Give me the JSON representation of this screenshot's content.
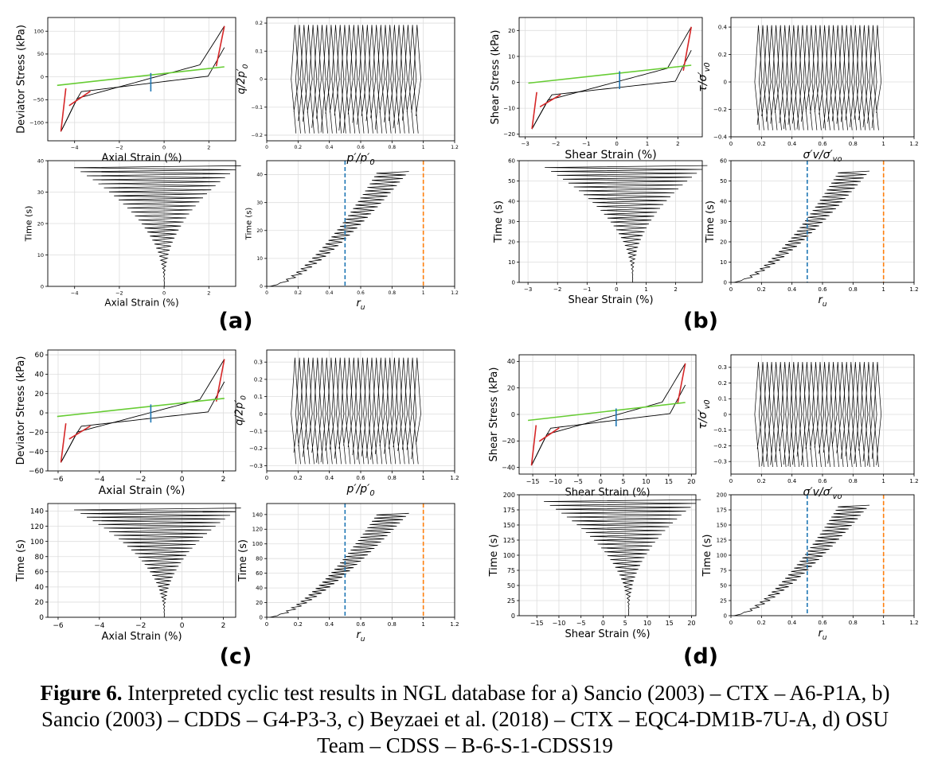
{
  "figure": {
    "caption_label": "Figure 6.",
    "caption_text": " Interpreted cyclic test results in NGL database for a) Sancio (2003) – CTX – A6-P1A, b) Sancio (2003) – CDDS – G4-P3-3, c) Beyzaei et al. (2018) – CTX – EQC4-DM1B-7U-A, d) OSU Team – CDSS – B-6-S-1-CDSS19"
  },
  "colors": {
    "trace": "#000000",
    "red": "#d62728",
    "green": "#66cc33",
    "blue": "#1f77b4",
    "orange": "#ff7f0e",
    "grid": "#dddddd"
  },
  "chart_data": [
    {
      "panel": "a",
      "type": "line",
      "xlabel": "Axial Strain (%)",
      "ylabel": "Deviator Stress (kPa)",
      "xlim": [
        -5.2,
        3.2
      ],
      "ylim": [
        -140,
        130
      ],
      "xticks": [
        -4,
        -2,
        0,
        2
      ],
      "yticks": [
        -100,
        -50,
        0,
        50,
        100
      ],
      "grid": true
    },
    {
      "panel": "a",
      "type": "line",
      "xlabel": "p′/p′0",
      "ylabel": "q/2p′0",
      "xlim": [
        0,
        1.2
      ],
      "ylim": [
        -0.22,
        0.22
      ],
      "xticks": [
        0.0,
        0.2,
        0.4,
        0.6,
        0.8,
        1.0,
        1.2
      ],
      "yticks": [
        -0.2,
        -0.1,
        0.0,
        0.1,
        0.2
      ],
      "grid": true
    },
    {
      "panel": "a",
      "type": "line",
      "xlabel": "Axial Strain (%)",
      "ylabel": "Time (s)",
      "xlim": [
        -5.2,
        3.2
      ],
      "ylim": [
        0,
        40
      ],
      "xticks": [
        -4,
        -2,
        0,
        2
      ],
      "yticks": [
        0,
        10,
        20,
        30,
        40
      ],
      "grid": true
    },
    {
      "panel": "a",
      "type": "line",
      "xlabel": "ru",
      "ylabel": "Time (s)",
      "xlim": [
        0,
        1.2
      ],
      "ylim": [
        0,
        45
      ],
      "xticks": [
        0.0,
        0.2,
        0.4,
        0.6,
        0.8,
        1.0,
        1.2
      ],
      "yticks": [
        0,
        10,
        20,
        30,
        40
      ],
      "vlines": [
        0.5,
        1.0
      ],
      "grid": true
    },
    {
      "panel": "b",
      "type": "line",
      "xlabel": "Shear Strain (%)",
      "ylabel": "Shear Stress (kPa)",
      "xlim": [
        -3.2,
        2.8
      ],
      "ylim": [
        -21,
        25
      ],
      "xticks": [
        -3,
        -2,
        -1,
        0,
        1,
        2
      ],
      "yticks": [
        -20,
        -10,
        0,
        10,
        20
      ],
      "grid": true
    },
    {
      "panel": "b",
      "type": "line",
      "xlabel": "σ′v/σ′vo",
      "ylabel": "τ/σ′v0",
      "xlim": [
        0,
        1.2
      ],
      "ylim": [
        -0.4,
        0.47
      ],
      "xticks": [
        0.0,
        0.2,
        0.4,
        0.6,
        0.8,
        1.0,
        1.2
      ],
      "yticks": [
        -0.4,
        -0.2,
        0.0,
        0.2,
        0.4
      ],
      "grid": true
    },
    {
      "panel": "b",
      "type": "line",
      "xlabel": "Shear Strain (%)",
      "ylabel": "Time (s)",
      "xlim": [
        -3.3,
        2.9
      ],
      "ylim": [
        0,
        60
      ],
      "xticks": [
        -3,
        -2,
        -1,
        0,
        1,
        2
      ],
      "yticks": [
        0,
        10,
        20,
        30,
        40,
        50,
        60
      ],
      "grid": true
    },
    {
      "panel": "b",
      "type": "line",
      "xlabel": "ru",
      "ylabel": "Time (s)",
      "xlim": [
        0,
        1.2
      ],
      "ylim": [
        0,
        60
      ],
      "xticks": [
        0.0,
        0.2,
        0.4,
        0.6,
        0.8,
        1.0,
        1.2
      ],
      "yticks": [
        0,
        10,
        20,
        30,
        40,
        50,
        60
      ],
      "vlines": [
        0.5,
        1.0
      ],
      "grid": true
    },
    {
      "panel": "c",
      "type": "line",
      "xlabel": "Axial Strain (%)",
      "ylabel": "Deviator Stress (kPa)",
      "xlim": [
        -6.5,
        2.6
      ],
      "ylim": [
        -60,
        65
      ],
      "xticks": [
        -6,
        -4,
        -2,
        0,
        2
      ],
      "yticks": [
        -60,
        -40,
        -20,
        0,
        20,
        40,
        60
      ],
      "grid": true
    },
    {
      "panel": "c",
      "type": "line",
      "xlabel": "p′/p′0",
      "ylabel": "q/2p′0",
      "xlim": [
        0,
        1.2
      ],
      "ylim": [
        -0.33,
        0.37
      ],
      "xticks": [
        0.0,
        0.2,
        0.4,
        0.6,
        0.8,
        1.0,
        1.2
      ],
      "yticks": [
        -0.3,
        -0.2,
        -0.1,
        0.0,
        0.1,
        0.2,
        0.3
      ],
      "grid": true
    },
    {
      "panel": "c",
      "type": "line",
      "xlabel": "Axial Strain (%)",
      "ylabel": "Time (s)",
      "xlim": [
        -6.5,
        2.6
      ],
      "ylim": [
        0,
        150
      ],
      "xticks": [
        -6,
        -4,
        -2,
        0,
        2
      ],
      "yticks": [
        0,
        20,
        40,
        60,
        80,
        100,
        120,
        140
      ],
      "grid": true
    },
    {
      "panel": "c",
      "type": "line",
      "xlabel": "ru",
      "ylabel": "Time (s)",
      "xlim": [
        0,
        1.2
      ],
      "ylim": [
        0,
        155
      ],
      "xticks": [
        0.0,
        0.2,
        0.4,
        0.6,
        0.8,
        1.0,
        1.2
      ],
      "yticks": [
        0,
        20,
        40,
        60,
        80,
        100,
        120,
        140
      ],
      "vlines": [
        0.5,
        1.0
      ],
      "grid": true
    },
    {
      "panel": "d",
      "type": "line",
      "xlabel": "Shear Strain (%)",
      "ylabel": "Shear Stress (kPa)",
      "xlim": [
        -18,
        21
      ],
      "ylim": [
        -45,
        45
      ],
      "xticks": [
        -15,
        -10,
        -5,
        0,
        5,
        10,
        15,
        20
      ],
      "yticks": [
        -40,
        -20,
        0,
        20,
        40
      ],
      "grid": true
    },
    {
      "panel": "d",
      "type": "line",
      "xlabel": "σ′v/σ′vo",
      "ylabel": "τ/σ′v0",
      "xlim": [
        0,
        1.2
      ],
      "ylim": [
        -0.38,
        0.38
      ],
      "xticks": [
        0.0,
        0.2,
        0.4,
        0.6,
        0.8,
        1.0,
        1.2
      ],
      "yticks": [
        -0.3,
        -0.2,
        -0.1,
        0.0,
        0.1,
        0.2,
        0.3
      ],
      "grid": true
    },
    {
      "panel": "d",
      "type": "line",
      "xlabel": "Shear Strain (%)",
      "ylabel": "Time (s)",
      "xlim": [
        -19,
        21
      ],
      "ylim": [
        0,
        200
      ],
      "xticks": [
        -15,
        -10,
        -5,
        0,
        5,
        10,
        15,
        20
      ],
      "yticks": [
        0,
        25,
        50,
        75,
        100,
        125,
        150,
        175,
        200
      ],
      "grid": true
    },
    {
      "panel": "d",
      "type": "line",
      "xlabel": "ru",
      "ylabel": "Time (s)",
      "xlim": [
        0,
        1.2
      ],
      "ylim": [
        0,
        200
      ],
      "xticks": [
        0.0,
        0.2,
        0.4,
        0.6,
        0.8,
        1.0,
        1.2
      ],
      "yticks": [
        0,
        25,
        50,
        75,
        100,
        125,
        150,
        175,
        200
      ],
      "vlines": [
        0.5,
        1.0
      ],
      "grid": true
    }
  ],
  "panel_labels": [
    "(a)",
    "(b)",
    "(c)",
    "(d)"
  ]
}
